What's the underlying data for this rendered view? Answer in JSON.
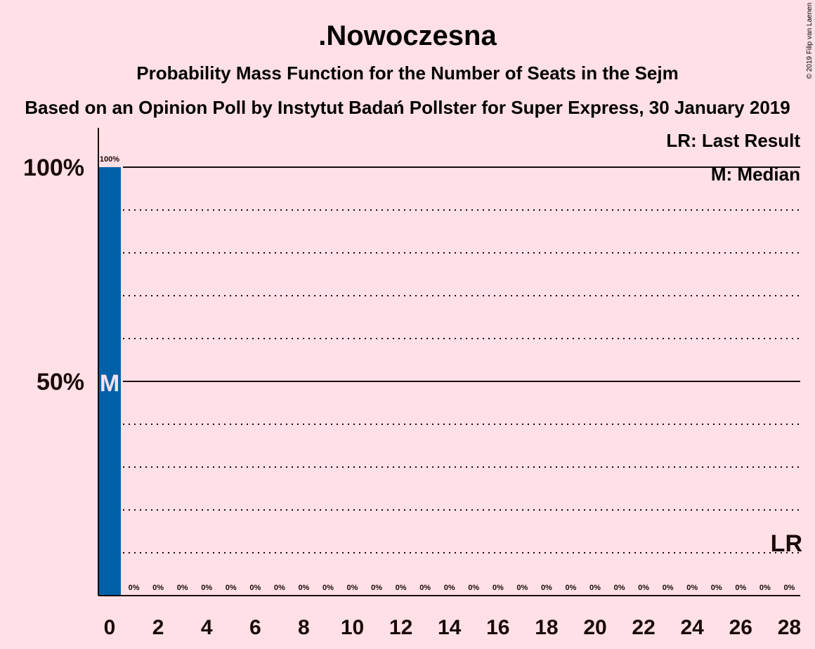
{
  "chart_data": {
    "type": "bar",
    "title": ".Nowoczesna",
    "subtitle": "Probability Mass Function for the Number of Seats in the Sejm",
    "subtitle2": "Based on an Opinion Poll by Instytut Badań Pollster for Super Express, 30 January 2019",
    "copyright": "© 2019 Filip van Laenen",
    "legend": [
      "LR: Last Result",
      "M: Median"
    ],
    "median_marker": "M",
    "last_result_marker": "LR",
    "median_seat": 0,
    "last_result_seat": 28,
    "x": [
      0,
      1,
      2,
      3,
      4,
      5,
      6,
      7,
      8,
      9,
      10,
      11,
      12,
      13,
      14,
      15,
      16,
      17,
      18,
      19,
      20,
      21,
      22,
      23,
      24,
      25,
      26,
      27,
      28
    ],
    "values": [
      100,
      0,
      0,
      0,
      0,
      0,
      0,
      0,
      0,
      0,
      0,
      0,
      0,
      0,
      0,
      0,
      0,
      0,
      0,
      0,
      0,
      0,
      0,
      0,
      0,
      0,
      0,
      0,
      0
    ],
    "value_labels": [
      "100%",
      "0%",
      "0%",
      "0%",
      "0%",
      "0%",
      "0%",
      "0%",
      "0%",
      "0%",
      "0%",
      "0%",
      "0%",
      "0%",
      "0%",
      "0%",
      "0%",
      "0%",
      "0%",
      "0%",
      "0%",
      "0%",
      "0%",
      "0%",
      "0%",
      "0%",
      "0%",
      "0%",
      "0%"
    ],
    "x_tick_labels": [
      "0",
      "2",
      "4",
      "6",
      "8",
      "10",
      "12",
      "14",
      "16",
      "18",
      "20",
      "22",
      "24",
      "26",
      "28"
    ],
    "x_ticks": [
      0,
      2,
      4,
      6,
      8,
      10,
      12,
      14,
      16,
      18,
      20,
      22,
      24,
      26,
      28
    ],
    "y_ticks": [
      50,
      100
    ],
    "y_tick_labels": [
      "50%",
      "100%"
    ],
    "ylim": [
      0,
      100
    ],
    "colors": {
      "bar": "#0060A8",
      "background": "#FFE0E6",
      "text": "#1a0a0a",
      "median_text": "#FFE0E6"
    }
  }
}
